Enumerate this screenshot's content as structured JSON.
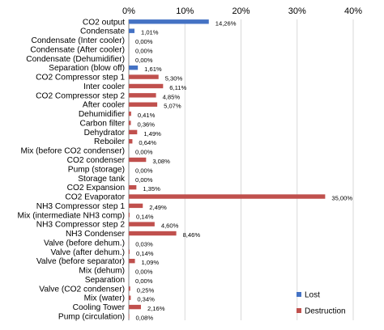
{
  "chart_data": {
    "type": "bar",
    "orientation": "horizontal",
    "categories": [
      "CO2 output",
      "Condensate",
      "Condensate (Inter cooler)",
      "Condensate (After cooler)",
      "Condensate (Dehumidifier)",
      "Separation (blow off)",
      "CO2 Compressor step 1",
      "Inter cooler",
      "CO2 Compressor step 2",
      "After cooler",
      "Dehumidifier",
      "Carbon filter",
      "Dehydrator",
      "Reboiler",
      "Mix (before CO2 condenser)",
      "CO2 condenser",
      "Pump (storage)",
      "Storage tank",
      "CO2 Expansion",
      "CO2 Evaporator",
      "NH3 Compressor step 1",
      "Mix (intermediate NH3 comp)",
      "NH3 Compressor step 2",
      "NH3 Condenser",
      "Valve (before dehum.)",
      "Valve (after dehum.)",
      "Valve (before separator)",
      "Mix (dehum)",
      "Separation",
      "Valve (CO2 condenser)",
      "Mix (water)",
      "Cooling Tower",
      "Pump (circulation)"
    ],
    "series": [
      {
        "name": "Lost",
        "color": "#4472C4",
        "values": [
          14.26,
          1.01,
          0,
          0,
          0,
          1.61,
          null,
          null,
          null,
          null,
          null,
          null,
          null,
          null,
          null,
          null,
          null,
          null,
          null,
          null,
          null,
          null,
          null,
          null,
          null,
          null,
          null,
          null,
          null,
          null,
          null,
          null,
          null
        ]
      },
      {
        "name": "Destruction",
        "color": "#C0504D",
        "values": [
          null,
          null,
          null,
          null,
          null,
          null,
          5.3,
          6.11,
          4.85,
          5.07,
          0.41,
          0.36,
          1.49,
          0.64,
          0,
          3.08,
          0,
          0,
          1.35,
          35.0,
          2.49,
          0.14,
          4.6,
          8.46,
          0.03,
          0.14,
          1.09,
          0,
          0,
          0.25,
          0.34,
          2.16,
          0.08
        ]
      }
    ],
    "data_labels": [
      "14,26%",
      "1,01%",
      "0,00%",
      "0,00%",
      "0,00%",
      "1,61%",
      "5,30%",
      "6,11%",
      "4,85%",
      "5,07%",
      "0,41%",
      "0,36%",
      "1,49%",
      "0,64%",
      "0,00%",
      "3,08%",
      "0,00%",
      "0,00%",
      "1,35%",
      "35,00%",
      "2,49%",
      "0,14%",
      "4,60%",
      "8,46%",
      "0,03%",
      "0,14%",
      "1,09%",
      "0,00%",
      "0,00%",
      "0,25%",
      "0,34%",
      "2,16%",
      "0,08%"
    ],
    "xlim": [
      0,
      40
    ],
    "x_ticks": [
      "0%",
      "10%",
      "20%",
      "30%",
      "40%"
    ],
    "x_tick_values": [
      0,
      10,
      20,
      30,
      40
    ],
    "x_axis_position": "top",
    "grid": true,
    "legend_position": "bottom-right",
    "title": "",
    "xlabel": "",
    "ylabel": ""
  }
}
